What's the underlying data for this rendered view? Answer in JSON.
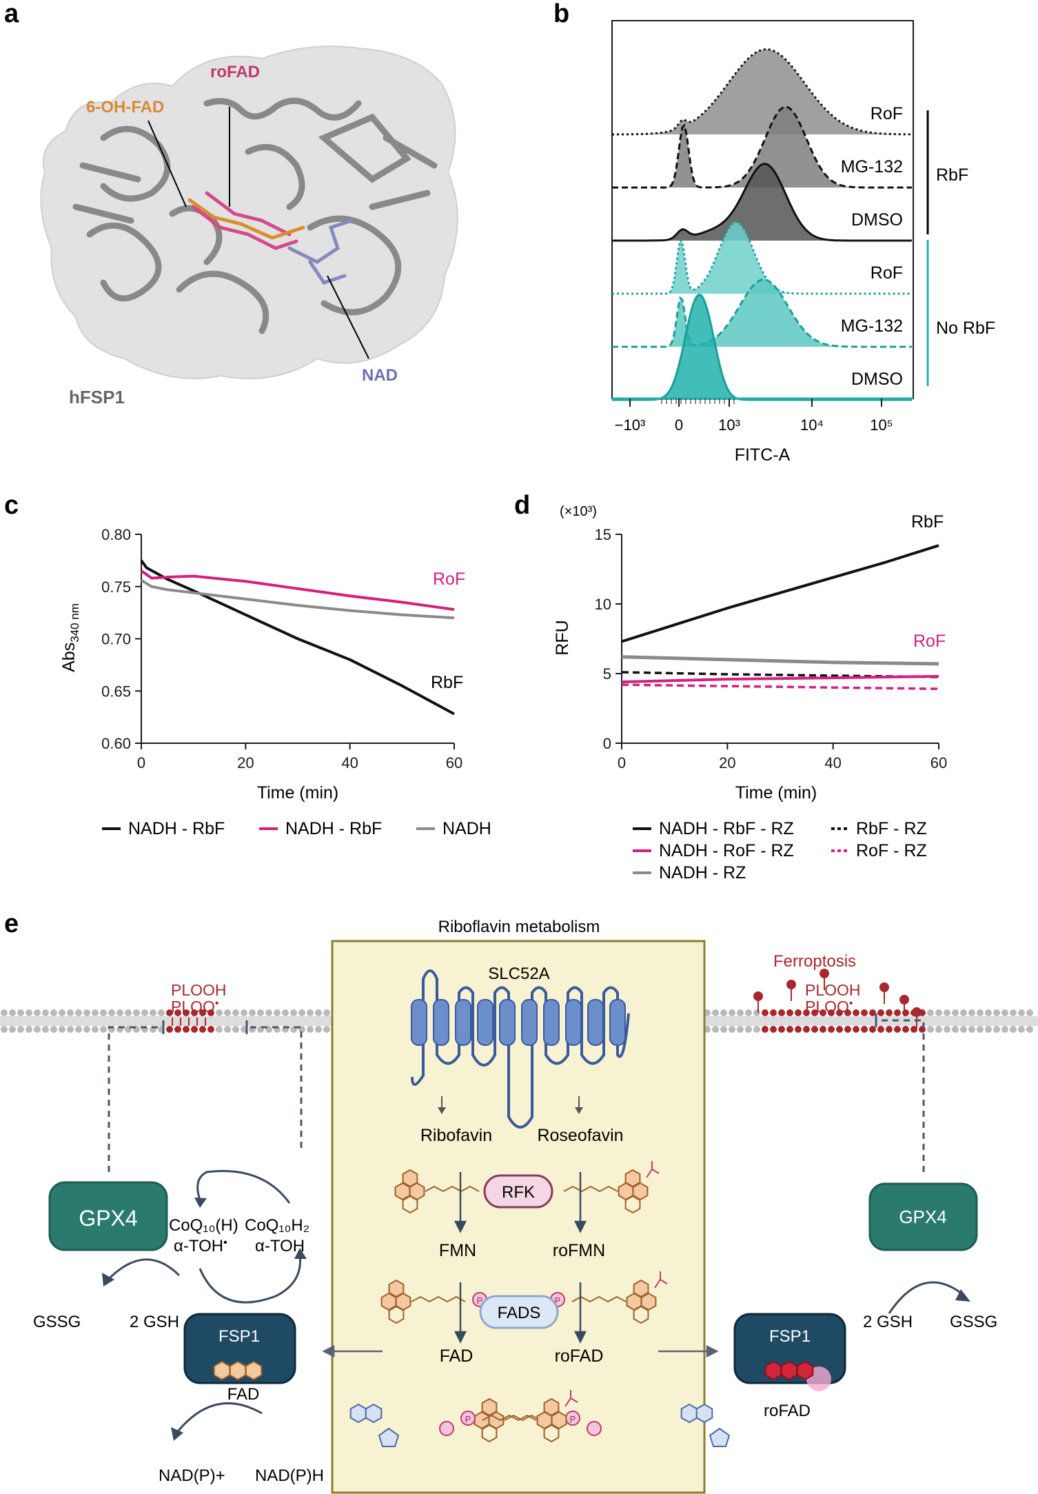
{
  "colors": {
    "black": "#111111",
    "magenta": "#d41f7e",
    "gray": "#8a8a8a",
    "teal": "#21b2ae",
    "tealDark": "#1b9f9a",
    "darkTeal": "#2b7a6e",
    "navy": "#1f4a63",
    "membrane": "#b9b9b9",
    "lipidRed": "#a8272c",
    "cream": "#f7f3d2",
    "creamBorder": "#8c7d2e",
    "slc": "#6c8ecb",
    "orange": "#d8893a",
    "rfk": "#f5d6e4",
    "fads": "#dde8f6"
  },
  "panel_a": {
    "label": "a",
    "roFAD": "roFAD",
    "ohFAD": "6-OH-FAD",
    "nad": "NAD",
    "protein": "hFSP1"
  },
  "panel_b": {
    "label": "b",
    "rows": [
      "RoF",
      "MG-132",
      "DMSO",
      "RoF",
      "MG-132",
      "DMSO"
    ],
    "group_rbf": "RbF",
    "group_norbf": "No RbF",
    "xlabel": "FITC-A",
    "xticks": [
      "−10³",
      "0",
      "10³",
      "10⁴",
      "10⁵"
    ]
  },
  "panel_c": {
    "label": "c",
    "ylabel_main": "Abs",
    "ylabel_sub": "340 nm",
    "xlabel": "Time (min)",
    "legend": [
      "NADH - RbF",
      "NADH - RbF",
      "NADH"
    ],
    "label_rof": "RoF",
    "label_rbf": "RbF"
  },
  "panel_d": {
    "label": "d",
    "multiplier": "(×10³)",
    "ylabel": "RFU",
    "xlabel": "Time (min)",
    "label_rbf": "RbF",
    "label_rof": "RoF",
    "legend": [
      "NADH - RbF - RZ",
      "RbF - RZ",
      "NADH - RoF - RZ",
      "RoF - RZ",
      "NADH - RZ"
    ]
  },
  "panel_e": {
    "label": "e",
    "title": "Riboflavin metabolism",
    "slc": "SLC52A",
    "ribofavin": "Ribofavin",
    "roseofavin": "Roseofavin",
    "rfk": "RFK",
    "fmn": "FMN",
    "rofmn": "roFMN",
    "fads": "FADS",
    "fad": "FAD",
    "rofad": "roFAD",
    "ferroptosis": "Ferroptosis",
    "plooh": "PLOOH",
    "ploo": "PLOO",
    "gpx4": "GPX4",
    "gssg": "GSSG",
    "gsh": "2 GSH",
    "fsp1": "FSP1",
    "coq_left": "CoQ₁₀(H)",
    "coq_right": "CoQ₁₀H₂",
    "atoh_left": "α-TOH",
    "atoh_right": "α-TOH",
    "fad_bound": "FAD",
    "rofad_bound": "roFAD",
    "nadp": "NAD(P)+",
    "nadph": "NAD(P)H",
    "p": "P"
  },
  "chart_data": [
    {
      "type": "histogram",
      "panel": "b",
      "xlabel": "FITC-A",
      "xticks": [
        "−10³",
        "0",
        "10³",
        "10⁴",
        "10⁵"
      ],
      "series": [
        {
          "name": "RbF / RoF",
          "peak": "10³–10⁴"
        },
        {
          "name": "RbF / MG-132",
          "peak": "10⁴"
        },
        {
          "name": "RbF / DMSO",
          "peak": "10⁴"
        },
        {
          "name": "No RbF / RoF",
          "peak": "0 and 10³"
        },
        {
          "name": "No RbF / MG-132",
          "peak": "0 and 10⁴"
        },
        {
          "name": "No RbF / DMSO",
          "peak": "0–10³"
        }
      ]
    },
    {
      "type": "line",
      "panel": "c",
      "xlabel": "Time (min)",
      "ylabel": "Abs340 nm",
      "xlim": [
        0,
        60
      ],
      "ylim": [
        0.6,
        0.8
      ],
      "xticks": [
        0,
        20,
        40,
        60
      ],
      "yticks": [
        "0.60",
        "0.65",
        "0.70",
        "0.75",
        "0.80"
      ],
      "series": [
        {
          "x": [
            0,
            1,
            5,
            10,
            20,
            30,
            40,
            50,
            60
          ],
          "y": [
            0.775,
            0.768,
            0.757,
            0.746,
            0.723,
            0.7,
            0.68,
            0.655,
            0.628
          ]
        },
        {
          "x": [
            0,
            2,
            5,
            10,
            20,
            30,
            40,
            50,
            60
          ],
          "y": [
            0.765,
            0.758,
            0.759,
            0.76,
            0.755,
            0.748,
            0.741,
            0.735,
            0.728
          ]
        },
        {
          "x": [
            0,
            2,
            5,
            10,
            20,
            30,
            40,
            50,
            60
          ],
          "y": [
            0.756,
            0.75,
            0.747,
            0.744,
            0.738,
            0.732,
            0.727,
            0.723,
            0.72
          ]
        }
      ]
    },
    {
      "type": "line",
      "panel": "d",
      "xlabel": "Time (min)",
      "ylabel": "RFU",
      "xlim": [
        0,
        60
      ],
      "ylim": [
        0,
        15
      ],
      "xticks": [
        0,
        20,
        40,
        60
      ],
      "yticks": [
        0,
        5,
        10,
        15
      ],
      "series": [
        {
          "x": [
            0,
            10,
            20,
            30,
            40,
            50,
            60
          ],
          "y": [
            7.3,
            8.5,
            9.7,
            10.8,
            11.9,
            13.0,
            14.2
          ]
        },
        {
          "x": [
            0,
            20,
            40,
            60
          ],
          "y": [
            5.1,
            4.95,
            4.85,
            4.75
          ]
        },
        {
          "x": [
            0,
            20,
            40,
            60
          ],
          "y": [
            4.4,
            4.6,
            4.7,
            4.8
          ]
        },
        {
          "x": [
            0,
            20,
            40,
            60
          ],
          "y": [
            4.2,
            4.1,
            4.0,
            3.9
          ]
        },
        {
          "x": [
            0,
            20,
            40,
            60
          ],
          "y": [
            6.2,
            6.0,
            5.8,
            5.7
          ]
        }
      ]
    }
  ]
}
